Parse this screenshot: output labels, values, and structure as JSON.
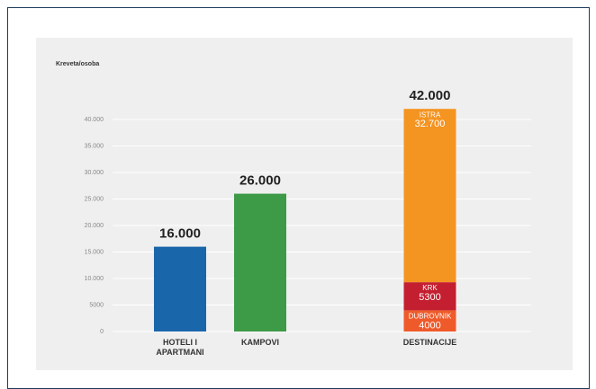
{
  "chart_data": {
    "type": "bar",
    "y_label": "Kreveta/osoba",
    "ylim": [
      0,
      45000
    ],
    "yticks": [
      0,
      5000,
      {
        "value": 10000,
        "label": "10.000"
      },
      {
        "value": 15000,
        "label": "15.000"
      },
      {
        "value": 20000,
        "label": "20.000"
      },
      {
        "value": 25000,
        "label": "25.000"
      },
      {
        "value": 30000,
        "label": "30.000"
      },
      {
        "value": 35000,
        "label": "35.000"
      },
      {
        "value": 40000,
        "label": "40.000"
      }
    ],
    "grid": true,
    "bars": [
      {
        "category": "HOTELI I APARTMANI",
        "value": 16000,
        "value_label": "16.000",
        "color": "#1a66ab"
      },
      {
        "category": "KAMPOVI",
        "value": 26000,
        "value_label": "26.000",
        "color": "#3d9a47"
      },
      {
        "category": "DESTINACIJE",
        "value": 42000,
        "value_label": "42.000",
        "segments": [
          {
            "name": "DUBROVNIK",
            "value": 4000,
            "color": "#ee5a2a"
          },
          {
            "name": "KRK",
            "value": 5300,
            "color": "#c41f30"
          },
          {
            "name": "ISTRA",
            "value": 32700,
            "value_label": "32.700",
            "color": "#f49421"
          }
        ]
      }
    ]
  }
}
